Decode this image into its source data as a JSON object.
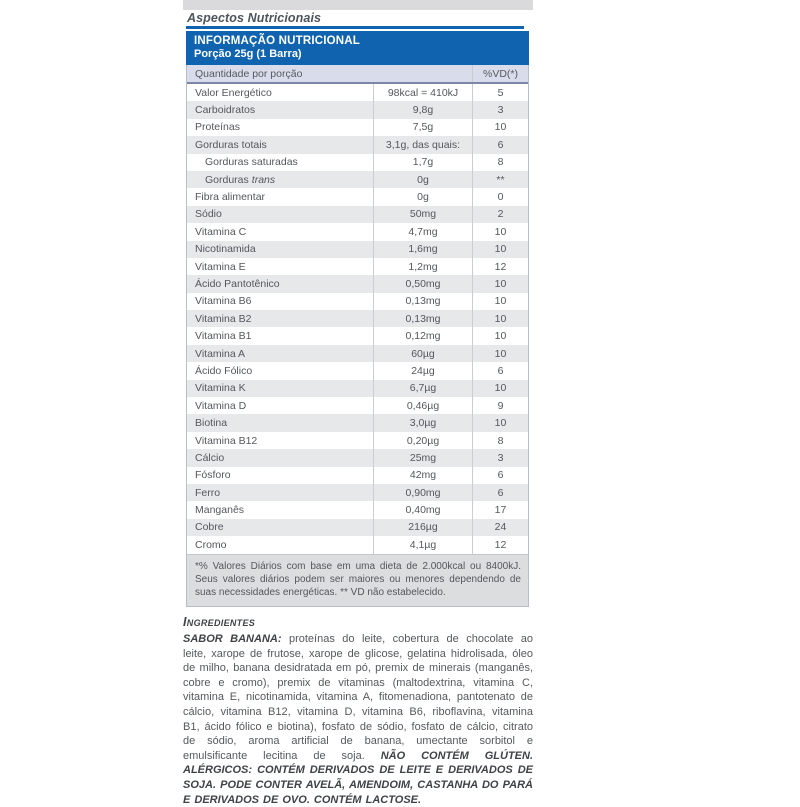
{
  "section": {
    "title": "Aspectos Nutricionais"
  },
  "table": {
    "title_line1": "INFORMAÇÃO NUTRICIONAL",
    "title_line2": "Porção 25g (1 Barra)",
    "col_header_quantity": "Quantidade por porção",
    "col_header_dv": "%VD(*)",
    "rows": [
      {
        "label": "Valor Energético",
        "value": "98kcal = 410kJ",
        "vd": "5"
      },
      {
        "label": "Carboidratos",
        "value": "9,8g",
        "vd": "3"
      },
      {
        "label": "Proteínas",
        "value": "7,5g",
        "vd": "10"
      },
      {
        "label": "Gorduras totais",
        "value": "3,1g, das quais:",
        "vd": "6"
      },
      {
        "label": "Gorduras saturadas",
        "value": "1,7g",
        "vd": "8",
        "indent": true
      },
      {
        "label": "Gorduras",
        "label_italic": "trans",
        "value": "0g",
        "vd": "**",
        "indent": true
      },
      {
        "label": "Fibra alimentar",
        "value": "0g",
        "vd": "0"
      },
      {
        "label": "Sódio",
        "value": "50mg",
        "vd": "2"
      },
      {
        "label": "Vitamina C",
        "value": "4,7mg",
        "vd": "10"
      },
      {
        "label": "Nicotinamida",
        "value": "1,6mg",
        "vd": "10"
      },
      {
        "label": "Vitamina E",
        "value": "1,2mg",
        "vd": "12"
      },
      {
        "label": "Ácido Pantotênico",
        "value": "0,50mg",
        "vd": "10"
      },
      {
        "label": "Vitamina B6",
        "value": "0,13mg",
        "vd": "10"
      },
      {
        "label": "Vitamina B2",
        "value": "0,13mg",
        "vd": "10"
      },
      {
        "label": "Vitamina B1",
        "value": "0,12mg",
        "vd": "10"
      },
      {
        "label": "Vitamina A",
        "value": "60µg",
        "vd": "10"
      },
      {
        "label": "Ácido Fólico",
        "value": "24µg",
        "vd": "6"
      },
      {
        "label": "Vitamina K",
        "value": "6,7µg",
        "vd": "10"
      },
      {
        "label": "Vitamina D",
        "value": "0,46µg",
        "vd": "9"
      },
      {
        "label": "Biotina",
        "value": "3,0µg",
        "vd": "10"
      },
      {
        "label": "Vitamina B12",
        "value": "0,20µg",
        "vd": "8"
      },
      {
        "label": "Cálcio",
        "value": "25mg",
        "vd": "3"
      },
      {
        "label": "Fósforo",
        "value": "42mg",
        "vd": "6"
      },
      {
        "label": "Ferro",
        "value": "0,90mg",
        "vd": "6"
      },
      {
        "label": "Manganês",
        "value": "0,40mg",
        "vd": "17"
      },
      {
        "label": "Cobre",
        "value": "216µg",
        "vd": "24"
      },
      {
        "label": "Cromo",
        "value": "4,1µg",
        "vd": "12"
      }
    ],
    "footnote": "*% Valores Diários com base em uma dieta de 2.000kcal ou 8400kJ. Seus valores diários podem ser maiores ou menores dependendo de suas necessidades energéticas. ** VD não estabelecido."
  },
  "ingredients": {
    "heading": "Ingredientes",
    "flavor_label": "SABOR BANANA:",
    "body": "proteínas do leite, cobertura de chocolate ao leite, xarope de frutose, xarope de glicose, gelatina hidrolisada, óleo de milho, banana desidratada em pó, premix de minerais (manganês, cobre e cromo), premix de vitaminas (maltodextrina, vitamina C, vitamina E, nicotinamida, vitamina A, fitomenadiona, pantotenato de cálcio, vitamina B12, vitamina D, vitamina B6, riboflavina, vitamina B1, ácido fólico e biotina), fosfato de sódio, fosfato de cálcio, citrato de sódio, aroma artificial de banana, umectante sorbitol e emulsificante lecitina de soja.",
    "allergy_note": "NÃO CONTÉM GLÚTEN. ALÉRGICOS: CONTÉM DERIVADOS DE LEITE E DERIVADOS DE SOJA. PODE CONTER AVELÃ, AMENDOIM, CASTANHA DO PARÁ E DERIVADOS DE OVO. CONTÉM LACTOSE."
  },
  "colors": {
    "header_blue": "#1063ae",
    "row_alt_gray": "#e6e8ea",
    "subheader_bg": "#d9dcea",
    "note_bg": "#dbddde",
    "body_text": "#54585c"
  }
}
